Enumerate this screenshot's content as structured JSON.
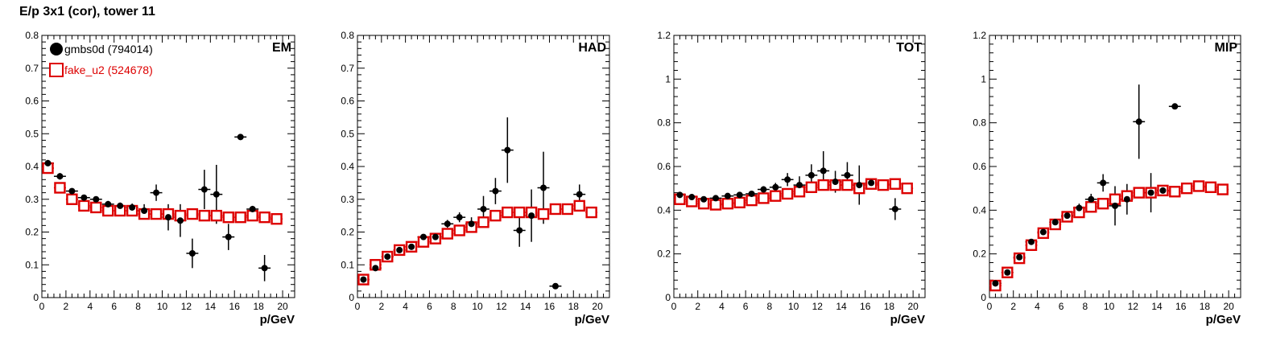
{
  "figure_title": "E/p 3x1 (cor), tower 11",
  "legend": [
    {
      "name": "gmbs0d (794014)",
      "color": "#000000",
      "marker": "filled-circle"
    },
    {
      "name": "fake_u2 (524678)",
      "color": "#dd0000",
      "marker": "open-square"
    }
  ],
  "chart_data": [
    {
      "type": "scatter",
      "panel_label": "EM",
      "xlabel": "p/GeV",
      "xlim": [
        0,
        21
      ],
      "ylim": [
        0,
        0.8
      ],
      "xticks": [
        "0",
        "2",
        "4",
        "6",
        "8",
        "10",
        "12",
        "14",
        "16",
        "18",
        "20"
      ],
      "yticks": [
        "0",
        "0.1",
        "0.2",
        "0.3",
        "0.4",
        "0.5",
        "0.6",
        "0.7",
        "0.8"
      ],
      "series": [
        {
          "name": "gmbs0d (794014)",
          "x": [
            0.5,
            1.5,
            2.5,
            3.5,
            4.5,
            5.5,
            6.5,
            7.5,
            8.5,
            9.5,
            10.5,
            11.5,
            12.5,
            13.5,
            14.5,
            15.5,
            16.5,
            17.5,
            18.5
          ],
          "y": [
            0.41,
            0.37,
            0.325,
            0.305,
            0.3,
            0.285,
            0.28,
            0.275,
            0.265,
            0.32,
            0.245,
            0.235,
            0.135,
            0.33,
            0.315,
            0.185,
            0.49,
            0.27,
            0.09
          ],
          "yerr": [
            0.01,
            0.01,
            0.008,
            0.008,
            0.008,
            0.01,
            0.01,
            0.012,
            0.02,
            0.025,
            0.04,
            0.05,
            0.045,
            0.06,
            0.09,
            0.04,
            0.005,
            0.01,
            0.04
          ]
        },
        {
          "name": "fake_u2 (524678)",
          "x": [
            0.5,
            1.5,
            2.5,
            3.5,
            4.5,
            5.5,
            6.5,
            7.5,
            8.5,
            9.5,
            10.5,
            11.5,
            12.5,
            13.5,
            14.5,
            15.5,
            16.5,
            17.5,
            18.5,
            19.5
          ],
          "y": [
            0.395,
            0.335,
            0.3,
            0.28,
            0.275,
            0.265,
            0.265,
            0.265,
            0.255,
            0.255,
            0.255,
            0.25,
            0.255,
            0.25,
            0.25,
            0.245,
            0.245,
            0.25,
            0.245,
            0.24
          ]
        }
      ]
    },
    {
      "type": "scatter",
      "panel_label": "HAD",
      "xlabel": "p/GeV",
      "xlim": [
        0,
        21
      ],
      "ylim": [
        0,
        0.8
      ],
      "xticks": [
        "0",
        "2",
        "4",
        "6",
        "8",
        "10",
        "12",
        "14",
        "16",
        "18",
        "20"
      ],
      "yticks": [
        "0",
        "0.1",
        "0.2",
        "0.3",
        "0.4",
        "0.5",
        "0.6",
        "0.7",
        "0.8"
      ],
      "series": [
        {
          "name": "gmbs0d (794014)",
          "x": [
            0.5,
            1.5,
            2.5,
            3.5,
            4.5,
            5.5,
            6.5,
            7.5,
            8.5,
            9.5,
            10.5,
            11.5,
            12.5,
            13.5,
            14.5,
            15.5,
            16.5,
            18.5
          ],
          "y": [
            0.055,
            0.09,
            0.125,
            0.145,
            0.155,
            0.185,
            0.185,
            0.225,
            0.245,
            0.225,
            0.27,
            0.325,
            0.45,
            0.205,
            0.25,
            0.335,
            0.035,
            0.315
          ],
          "yerr": [
            0.008,
            0.008,
            0.008,
            0.008,
            0.008,
            0.008,
            0.01,
            0.012,
            0.015,
            0.02,
            0.04,
            0.04,
            0.1,
            0.05,
            0.08,
            0.11,
            0.003,
            0.03
          ]
        },
        {
          "name": "fake_u2 (524678)",
          "x": [
            0.5,
            1.5,
            2.5,
            3.5,
            4.5,
            5.5,
            6.5,
            7.5,
            8.5,
            9.5,
            10.5,
            11.5,
            12.5,
            13.5,
            14.5,
            15.5,
            16.5,
            17.5,
            18.5,
            19.5
          ],
          "y": [
            0.055,
            0.1,
            0.125,
            0.145,
            0.155,
            0.17,
            0.18,
            0.195,
            0.205,
            0.215,
            0.23,
            0.25,
            0.26,
            0.26,
            0.26,
            0.255,
            0.27,
            0.27,
            0.28,
            0.26
          ]
        }
      ]
    },
    {
      "type": "scatter",
      "panel_label": "TOT",
      "xlabel": "p/GeV",
      "xlim": [
        0,
        21
      ],
      "ylim": [
        0,
        1.2
      ],
      "xticks": [
        "0",
        "2",
        "4",
        "6",
        "8",
        "10",
        "12",
        "14",
        "16",
        "18",
        "20"
      ],
      "yticks": [
        "0",
        "0.2",
        "0.4",
        "0.6",
        "0.8",
        "1",
        "1.2"
      ],
      "series": [
        {
          "name": "gmbs0d (794014)",
          "x": [
            0.5,
            1.5,
            2.5,
            3.5,
            4.5,
            5.5,
            6.5,
            7.5,
            8.5,
            9.5,
            10.5,
            11.5,
            12.5,
            13.5,
            14.5,
            15.5,
            16.5,
            18.5
          ],
          "y": [
            0.47,
            0.46,
            0.45,
            0.455,
            0.465,
            0.47,
            0.475,
            0.495,
            0.505,
            0.54,
            0.515,
            0.56,
            0.58,
            0.53,
            0.56,
            0.515,
            0.525,
            0.405
          ],
          "yerr": [
            0.01,
            0.01,
            0.01,
            0.01,
            0.01,
            0.01,
            0.012,
            0.015,
            0.02,
            0.03,
            0.04,
            0.05,
            0.09,
            0.05,
            0.06,
            0.09,
            0.015,
            0.05
          ]
        },
        {
          "name": "fake_u2 (524678)",
          "x": [
            0.5,
            1.5,
            2.5,
            3.5,
            4.5,
            5.5,
            6.5,
            7.5,
            8.5,
            9.5,
            10.5,
            11.5,
            12.5,
            13.5,
            14.5,
            15.5,
            16.5,
            17.5,
            18.5,
            19.5
          ],
          "y": [
            0.45,
            0.44,
            0.43,
            0.425,
            0.43,
            0.435,
            0.445,
            0.455,
            0.465,
            0.475,
            0.485,
            0.505,
            0.515,
            0.515,
            0.515,
            0.5,
            0.52,
            0.515,
            0.52,
            0.5
          ]
        }
      ]
    },
    {
      "type": "scatter",
      "panel_label": "MIP",
      "xlabel": "p/GeV",
      "xlim": [
        0,
        21
      ],
      "ylim": [
        0,
        1.2
      ],
      "xticks": [
        "0",
        "2",
        "4",
        "6",
        "8",
        "10",
        "12",
        "14",
        "16",
        "18",
        "20"
      ],
      "yticks": [
        "0",
        "0.2",
        "0.4",
        "0.6",
        "0.8",
        "1",
        "1.2"
      ],
      "series": [
        {
          "name": "gmbs0d (794014)",
          "x": [
            0.5,
            1.5,
            2.5,
            3.5,
            4.5,
            5.5,
            6.5,
            7.5,
            8.5,
            9.5,
            10.5,
            11.5,
            12.5,
            13.5,
            14.5,
            15.5
          ],
          "y": [
            0.065,
            0.115,
            0.185,
            0.255,
            0.3,
            0.345,
            0.375,
            0.41,
            0.45,
            0.525,
            0.42,
            0.45,
            0.805,
            0.48,
            0.49,
            0.875
          ],
          "yerr": [
            0.008,
            0.008,
            0.01,
            0.01,
            0.01,
            0.01,
            0.012,
            0.02,
            0.025,
            0.04,
            0.09,
            0.07,
            0.17,
            0.09,
            0.01,
            0.005
          ]
        },
        {
          "name": "fake_u2 (524678)",
          "x": [
            0.5,
            1.5,
            2.5,
            3.5,
            4.5,
            5.5,
            6.5,
            7.5,
            8.5,
            9.5,
            10.5,
            11.5,
            12.5,
            13.5,
            14.5,
            15.5,
            16.5,
            17.5,
            18.5,
            19.5
          ],
          "y": [
            0.055,
            0.115,
            0.18,
            0.24,
            0.295,
            0.335,
            0.37,
            0.39,
            0.415,
            0.43,
            0.45,
            0.465,
            0.48,
            0.48,
            0.49,
            0.485,
            0.5,
            0.51,
            0.505,
            0.495
          ]
        }
      ]
    }
  ]
}
